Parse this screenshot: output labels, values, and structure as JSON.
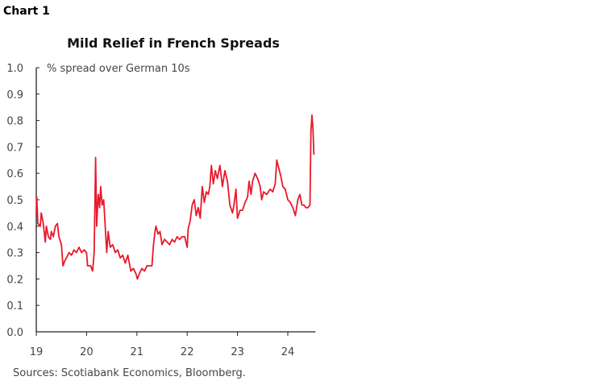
{
  "header": "Chart 1",
  "source": "Sources: Scotiabank Economics, Bloomberg.",
  "chart_data": {
    "type": "line",
    "title": "Mild Relief in French Spreads",
    "ylabel": "% spread over German 10s",
    "xlabel": "",
    "ylim": [
      0,
      1.0
    ],
    "xlim": [
      2019,
      2024.55
    ],
    "yticks": [
      "0.0",
      "0.1",
      "0.2",
      "0.3",
      "0.4",
      "0.5",
      "0.6",
      "0.7",
      "0.8",
      "0.9",
      "1.0"
    ],
    "xticks": [
      {
        "x": 2019,
        "label": "19"
      },
      {
        "x": 2020,
        "label": "20"
      },
      {
        "x": 2021,
        "label": "21"
      },
      {
        "x": 2022,
        "label": "22"
      },
      {
        "x": 2023,
        "label": "23"
      },
      {
        "x": 2024,
        "label": "24"
      }
    ],
    "grid": false,
    "color": "#e8192c",
    "series": [
      {
        "x": [
          2019.0,
          2019.01,
          2019.03,
          2019.08,
          2019.1,
          2019.14,
          2019.18,
          2019.2,
          2019.24,
          2019.28,
          2019.3,
          2019.34,
          2019.38,
          2019.42,
          2019.45,
          2019.5,
          2019.53,
          2019.57,
          2019.6,
          2019.65,
          2019.7,
          2019.75,
          2019.8,
          2019.85,
          2019.9,
          2019.95,
          2020.0,
          2020.02,
          2020.08,
          2020.12,
          2020.15,
          2020.18,
          2020.2,
          2020.23,
          2020.26,
          2020.28,
          2020.31,
          2020.34,
          2020.37,
          2020.4,
          2020.43,
          2020.47,
          2020.52,
          2020.57,
          2020.62,
          2020.67,
          2020.72,
          2020.77,
          2020.82,
          2020.88,
          2020.93,
          2020.98,
          2021.01,
          2021.05,
          2021.1,
          2021.15,
          2021.2,
          2021.25,
          2021.3,
          2021.33,
          2021.36,
          2021.38,
          2021.42,
          2021.46,
          2021.5,
          2021.55,
          2021.6,
          2021.65,
          2021.7,
          2021.75,
          2021.8,
          2021.85,
          2021.9,
          2021.95,
          2022.0,
          2022.02,
          2022.06,
          2022.1,
          2022.14,
          2022.18,
          2022.22,
          2022.26,
          2022.3,
          2022.34,
          2022.38,
          2022.42,
          2022.45,
          2022.48,
          2022.52,
          2022.56,
          2022.6,
          2022.65,
          2022.7,
          2022.75,
          2022.8,
          2022.85,
          2022.9,
          2022.93,
          2022.97,
          2023.0,
          2023.05,
          2023.1,
          2023.15,
          2023.2,
          2023.23,
          2023.27,
          2023.3,
          2023.35,
          2023.4,
          2023.45,
          2023.48,
          2023.52,
          2023.58,
          2023.65,
          2023.7,
          2023.75,
          2023.78,
          2023.82,
          2023.86,
          2023.9,
          2023.95,
          2024.0,
          2024.05,
          2024.1,
          2024.15,
          2024.2,
          2024.24,
          2024.28,
          2024.32,
          2024.36,
          2024.4,
          2024.44,
          2024.46,
          2024.48,
          2024.5,
          2024.52
        ],
        "y": [
          0.44,
          0.51,
          0.41,
          0.4,
          0.45,
          0.41,
          0.34,
          0.4,
          0.36,
          0.35,
          0.38,
          0.36,
          0.4,
          0.41,
          0.36,
          0.33,
          0.25,
          0.27,
          0.28,
          0.3,
          0.29,
          0.31,
          0.3,
          0.32,
          0.3,
          0.31,
          0.3,
          0.25,
          0.25,
          0.23,
          0.3,
          0.66,
          0.4,
          0.52,
          0.47,
          0.55,
          0.48,
          0.5,
          0.4,
          0.3,
          0.38,
          0.32,
          0.33,
          0.3,
          0.31,
          0.28,
          0.29,
          0.26,
          0.29,
          0.23,
          0.24,
          0.22,
          0.2,
          0.22,
          0.24,
          0.23,
          0.25,
          0.25,
          0.25,
          0.33,
          0.38,
          0.4,
          0.37,
          0.38,
          0.33,
          0.35,
          0.34,
          0.33,
          0.35,
          0.34,
          0.36,
          0.35,
          0.36,
          0.36,
          0.32,
          0.39,
          0.42,
          0.48,
          0.5,
          0.44,
          0.47,
          0.43,
          0.55,
          0.49,
          0.53,
          0.52,
          0.55,
          0.63,
          0.56,
          0.61,
          0.58,
          0.63,
          0.55,
          0.61,
          0.57,
          0.48,
          0.45,
          0.48,
          0.54,
          0.43,
          0.46,
          0.46,
          0.49,
          0.51,
          0.57,
          0.52,
          0.57,
          0.6,
          0.58,
          0.55,
          0.5,
          0.53,
          0.52,
          0.54,
          0.53,
          0.56,
          0.65,
          0.62,
          0.59,
          0.55,
          0.54,
          0.5,
          0.49,
          0.47,
          0.44,
          0.5,
          0.52,
          0.48,
          0.48,
          0.47,
          0.47,
          0.48,
          0.76,
          0.82,
          0.77,
          0.67
        ]
      }
    ]
  }
}
